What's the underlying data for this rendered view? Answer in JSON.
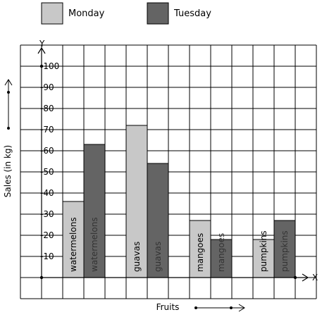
{
  "chart_data": {
    "type": "bar",
    "xlabel": "Fruits",
    "ylabel": "Sales (in kg)",
    "x_axis_letter": "X",
    "y_axis_letter": "Y",
    "categories": [
      "watermelons",
      "guavas",
      "mangoes",
      "pumpkins"
    ],
    "series": [
      {
        "name": "Monday",
        "values": [
          36,
          72,
          27,
          18
        ],
        "color": "#c8c8c8",
        "label_color": "#000000"
      },
      {
        "name": "Tuesday",
        "values": [
          63,
          54,
          18,
          27
        ],
        "color": "#646464",
        "label_color": "#333333"
      }
    ],
    "ylim": [
      0,
      110
    ],
    "yticks": [
      10,
      20,
      30,
      40,
      50,
      60,
      70,
      80,
      90,
      100
    ],
    "ytick_labels": [
      "10",
      "20",
      "30",
      "40",
      "50",
      "60",
      "70",
      "80",
      "90",
      "100"
    ],
    "grid": true,
    "legend_position": "top"
  }
}
